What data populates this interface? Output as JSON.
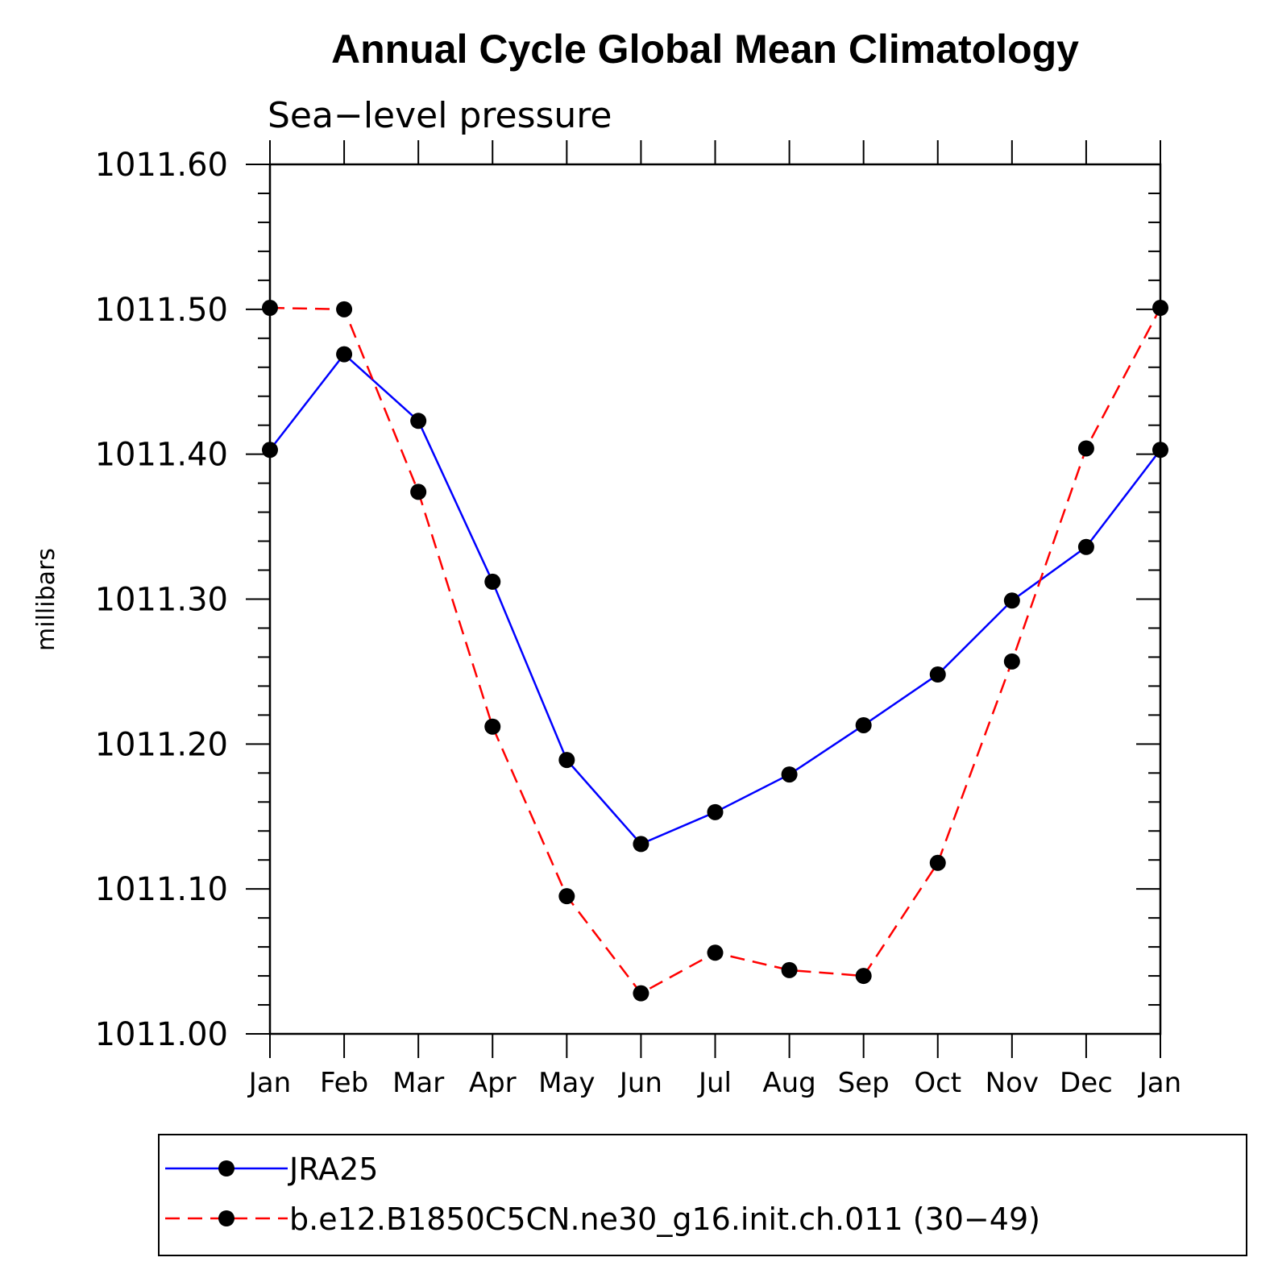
{
  "chart_data": {
    "type": "line",
    "title": "Annual Cycle Global Mean Climatology",
    "subtitle": "Sea−level pressure",
    "ylabel": "millibars",
    "xlabel": "",
    "categories": [
      "Jan",
      "Feb",
      "Mar",
      "Apr",
      "May",
      "Jun",
      "Jul",
      "Aug",
      "Sep",
      "Oct",
      "Nov",
      "Dec",
      "Jan"
    ],
    "ylim": [
      1011.0,
      1011.6
    ],
    "yticks": [
      "1011.00",
      "1011.10",
      "1011.20",
      "1011.30",
      "1011.40",
      "1011.50",
      "1011.60"
    ],
    "legend_position": "bottom",
    "series": [
      {
        "name": "JRA25",
        "color": "#0000ff",
        "dash": "solid",
        "values": [
          1011.403,
          1011.469,
          1011.423,
          1011.312,
          1011.189,
          1011.131,
          1011.153,
          1011.179,
          1011.213,
          1011.248,
          1011.299,
          1011.336,
          1011.403
        ]
      },
      {
        "name": "b.e12.B1850C5CN.ne30_g16.init.ch.011 (30−49)",
        "color": "#ff0000",
        "dash": "dashed",
        "values": [
          1011.501,
          1011.5,
          1011.374,
          1011.212,
          1011.095,
          1011.028,
          1011.056,
          1011.044,
          1011.04,
          1011.118,
          1011.257,
          1011.404,
          1011.501
        ]
      }
    ]
  }
}
